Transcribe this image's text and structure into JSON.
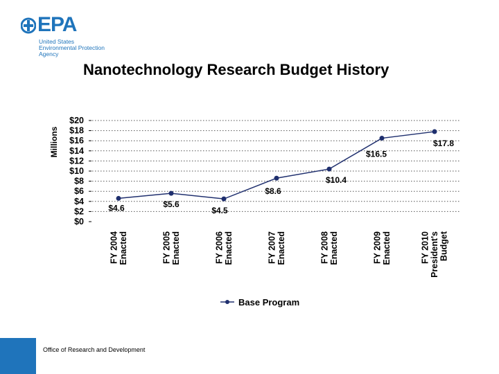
{
  "logo": {
    "word": "EPA",
    "lines": [
      "United States",
      "Environmental Protection",
      "Agency"
    ]
  },
  "footer": {
    "text": "Office of Research and Development"
  },
  "colors": {
    "brand": "#1f74bb",
    "series": "#1f2f6e"
  },
  "chart_data": {
    "type": "line",
    "title": "Nanotechnology Research Budget History",
    "ylabel": "Millions",
    "xlabel": "",
    "ylim": [
      0,
      20
    ],
    "ytick_step": 2,
    "ytick_labels": [
      "$0",
      "$2",
      "$4",
      "$6",
      "$8",
      "$10",
      "$12",
      "$14",
      "$16",
      "$18",
      "$20"
    ],
    "categories": [
      [
        "FY 2004",
        "Enacted"
      ],
      [
        "FY 2005",
        "Enacted"
      ],
      [
        "FY 2006",
        "Enacted"
      ],
      [
        "FY 2007",
        "Enacted"
      ],
      [
        "FY 2008",
        "Enacted"
      ],
      [
        "FY 2009",
        "Enacted"
      ],
      [
        "FY 2010",
        "President's",
        "Budget"
      ]
    ],
    "series": [
      {
        "name": "Base Program",
        "values": [
          4.6,
          5.6,
          4.5,
          8.6,
          10.4,
          16.5,
          17.8
        ],
        "data_labels": [
          "$4.6",
          "$5.6",
          "$4.5",
          "$8.6",
          "$10.4",
          "$16.5",
          "$17.8"
        ]
      }
    ],
    "grid": "horizontal-dotted",
    "legend": "bottom-center"
  }
}
